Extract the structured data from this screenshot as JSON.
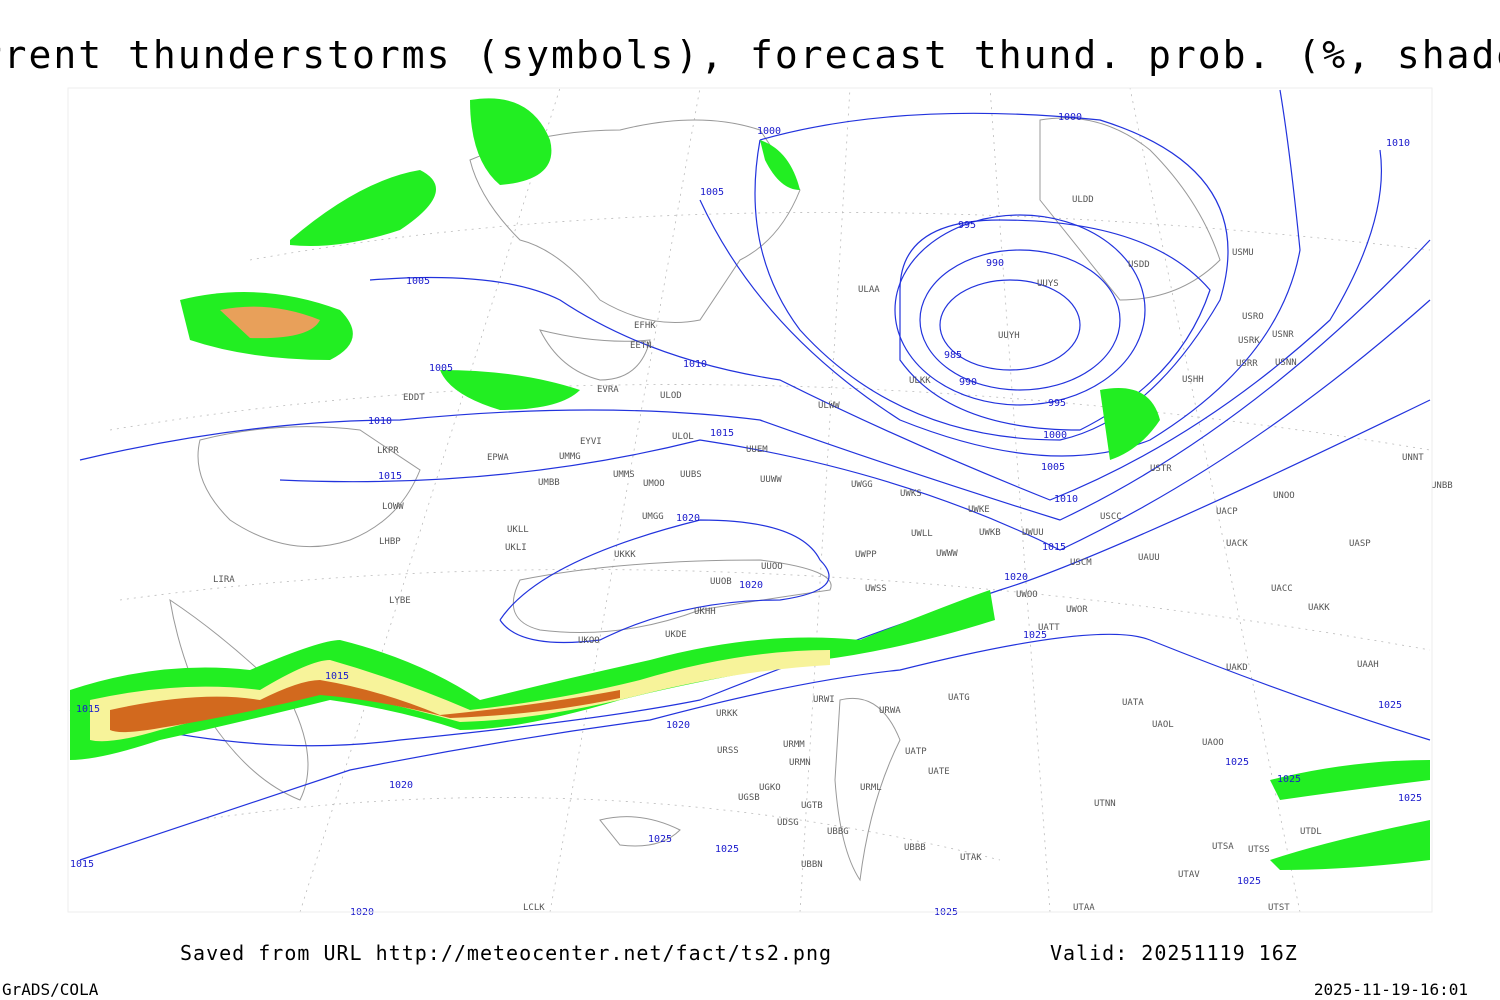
{
  "title": "Current thunderstorms (symbols), forecast thund. prob. (%, shaded)",
  "footer": {
    "source": "Saved from URL http://meteocenter.net/fact/ts2.png",
    "valid": "Valid: 20251119 16Z",
    "software": "GrADS/COLA",
    "timestamp": "2025-11-19-16:01"
  },
  "isobar_labels": [
    1000,
    1000,
    1010,
    1005,
    995,
    990,
    985,
    990,
    995,
    1000,
    1005,
    1010,
    1015,
    1020,
    1025,
    1005,
    1005,
    1010,
    1010,
    1015,
    1015,
    1020,
    1020,
    1015,
    1015,
    1020,
    1020,
    1025,
    1025,
    1025,
    1025,
    1025,
    1025,
    1025,
    1015,
    1020,
    1025
  ],
  "stations": [
    "ULDD",
    "USDD",
    "USMU",
    "UUYS",
    "ULAA",
    "USRO",
    "USRK",
    "USNR",
    "USRR",
    "USNN",
    "UUYH",
    "USHH",
    "ULKK",
    "ULWW",
    "ULOD",
    "EVRA",
    "EFHK",
    "EETN",
    "EDDT",
    "EYVI",
    "ULOL",
    "UUEM",
    "EPWA",
    "UMMG",
    "LKPR",
    "UMMS",
    "UMOO",
    "UUBS",
    "UUWW",
    "UWGG",
    "UWKS",
    "USTR",
    "UNNT",
    "UNBB",
    "UMBB",
    "LOWW",
    "UWKE",
    "UNOO",
    "USCC",
    "UACP",
    "UKLL",
    "UMGG",
    "UWKB",
    "UWUU",
    "UWLL",
    "UKLI",
    "LHBP",
    "UWWW",
    "UACK",
    "UASP",
    "UKKK",
    "UUOO",
    "UWPP",
    "UUOB",
    "UAUU",
    "USCM",
    "LIRA",
    "UWSS",
    "UACC",
    "UAKK",
    "LYBE",
    "UKHH",
    "UWOO",
    "UWOR",
    "UKOO",
    "UKDE",
    "UATT",
    "UAKD",
    "UAAH",
    "UATG",
    "URWI",
    "URKK",
    "UATA",
    "URWA",
    "UAOL",
    "URMM",
    "UAOO",
    "UATP",
    "URSS",
    "URMN",
    "UATE",
    "UGKO",
    "URML",
    "UGSB",
    "UGTB",
    "UTNN",
    "UTDL",
    "UDSG",
    "UBBG",
    "UBBB",
    "UTAK",
    "UBBN",
    "UTSA",
    "UTSS",
    "UTAV",
    "UTST",
    "UTAA",
    "LCLK"
  ]
}
